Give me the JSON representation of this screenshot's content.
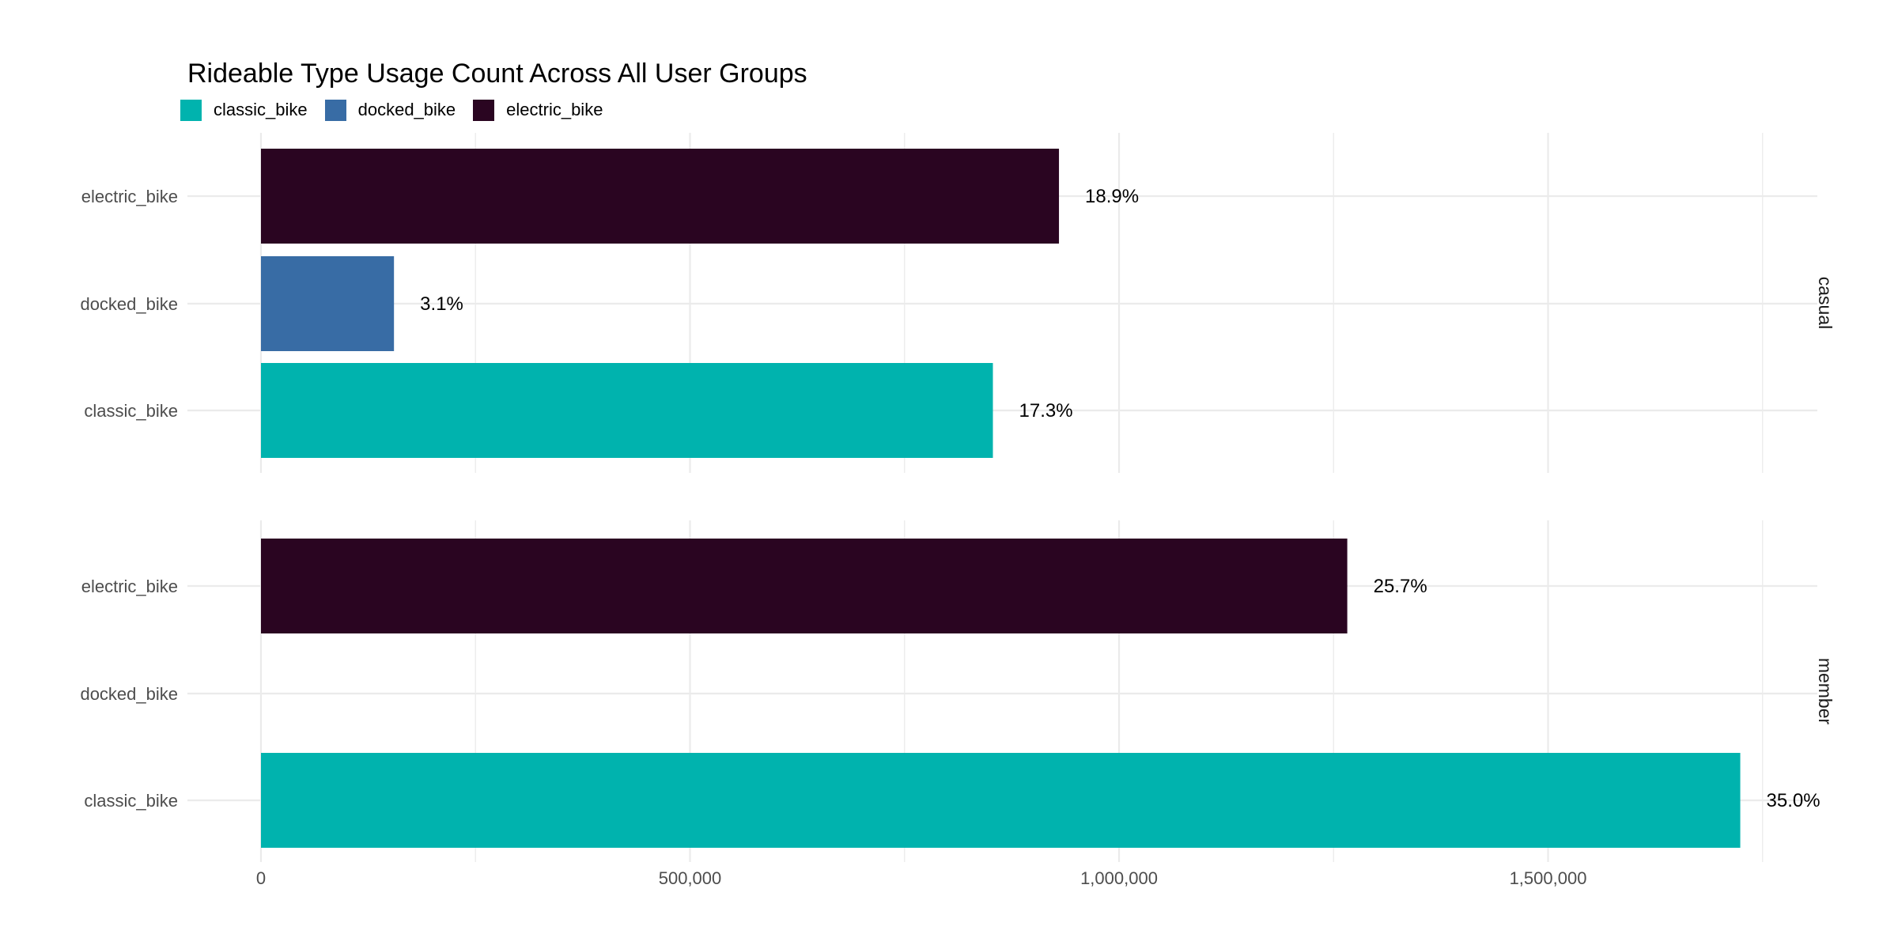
{
  "chart_data": {
    "type": "bar",
    "orientation": "horizontal",
    "title": "Rideable Type Usage Count Across All User Groups",
    "xlabel": "",
    "ylabel": "",
    "xlim": [
      0,
      1810000
    ],
    "x_ticks": [
      0,
      500000,
      1000000,
      1500000
    ],
    "x_tick_labels": [
      "0",
      "500,000",
      "1,000,000",
      "1,500,000"
    ],
    "categories": [
      "electric_bike",
      "docked_bike",
      "classic_bike"
    ],
    "legend": {
      "position": "top-left",
      "entries": [
        {
          "name": "classic_bike",
          "color": "#00B3AE"
        },
        {
          "name": "docked_bike",
          "color": "#386CA5"
        },
        {
          "name": "electric_bike",
          "color": "#2A0521"
        }
      ]
    },
    "grid": true,
    "facets": [
      {
        "label": "casual",
        "bars": [
          {
            "category": "electric_bike",
            "value": 930000,
            "label": "18.9%"
          },
          {
            "category": "docked_bike",
            "value": 155000,
            "label": "3.1%"
          },
          {
            "category": "classic_bike",
            "value": 853000,
            "label": "17.3%"
          }
        ]
      },
      {
        "label": "member",
        "bars": [
          {
            "category": "electric_bike",
            "value": 1266000,
            "label": "25.7%"
          },
          {
            "category": "docked_bike",
            "value": 0,
            "label": ""
          },
          {
            "category": "classic_bike",
            "value": 1724000,
            "label": "35.0%"
          }
        ]
      }
    ]
  }
}
